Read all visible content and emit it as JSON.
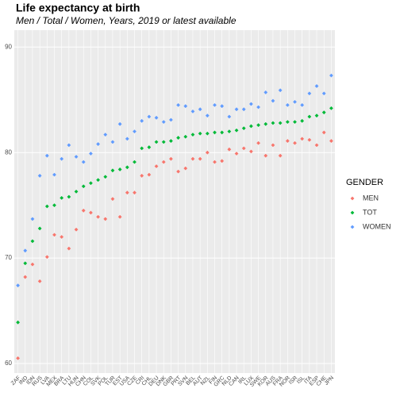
{
  "chart_data": {
    "type": "scatter",
    "title": "Life expectancy at birth",
    "subtitle": "Men / Total / Women, Years, 2019 or latest available",
    "legend_title": "GENDER",
    "categories": [
      "ZAF",
      "IND",
      "IDN",
      "RUS",
      "LVA",
      "MEX",
      "BRA",
      "LTU",
      "HUN",
      "CHN",
      "COL",
      "SVK",
      "POL",
      "TUR",
      "EST",
      "USA",
      "CZE",
      "CRI",
      "CHL",
      "DEU",
      "DNK",
      "GBR",
      "PRT",
      "SVN",
      "BEL",
      "AUT",
      "NZL",
      "FIN",
      "GRC",
      "NLD",
      "CAN",
      "IRL",
      "LUX",
      "SWE",
      "KOR",
      "AUS",
      "FRA",
      "NOR",
      "ISR",
      "ISL",
      "ITA",
      "ESP",
      "CHE",
      "JPN"
    ],
    "series": [
      {
        "name": "MEN",
        "color": "#F8766D",
        "values": [
          60.5,
          68.2,
          69.4,
          67.8,
          70.1,
          72.2,
          72.0,
          70.9,
          72.7,
          74.5,
          74.3,
          73.9,
          73.7,
          75.6,
          73.9,
          76.2,
          76.2,
          77.8,
          77.9,
          78.7,
          79.1,
          79.4,
          78.2,
          78.5,
          79.4,
          79.4,
          80.0,
          79.1,
          79.2,
          80.3,
          79.9,
          80.4,
          80.1,
          80.9,
          79.7,
          80.7,
          79.7,
          81.1,
          80.9,
          81.3,
          81.2,
          80.7,
          81.9,
          81.1
        ]
      },
      {
        "name": "TOT",
        "color": "#00BA38",
        "values": [
          63.9,
          69.5,
          71.6,
          72.8,
          74.9,
          75.0,
          75.7,
          75.8,
          76.3,
          76.8,
          77.1,
          77.4,
          77.7,
          78.3,
          78.4,
          78.6,
          79.1,
          80.4,
          80.5,
          81.0,
          81.0,
          81.1,
          81.4,
          81.5,
          81.7,
          81.8,
          81.8,
          81.9,
          81.9,
          82.0,
          82.1,
          82.3,
          82.5,
          82.6,
          82.7,
          82.8,
          82.8,
          82.9,
          82.9,
          83.0,
          83.4,
          83.5,
          83.8,
          84.2
        ]
      },
      {
        "name": "WOMEN",
        "color": "#619CFF",
        "values": [
          67.4,
          70.7,
          73.7,
          77.8,
          79.7,
          77.9,
          79.4,
          80.7,
          79.6,
          79.1,
          79.9,
          80.8,
          81.7,
          81.0,
          82.7,
          81.3,
          82.0,
          83.0,
          83.4,
          83.3,
          82.9,
          83.1,
          84.5,
          84.4,
          83.9,
          84.1,
          83.5,
          84.5,
          84.4,
          83.4,
          84.1,
          84.1,
          84.6,
          84.3,
          85.7,
          84.9,
          85.9,
          84.5,
          84.8,
          84.5,
          85.6,
          86.3,
          85.6,
          87.3
        ]
      }
    ],
    "ylim": [
      59.1,
      91.6
    ],
    "yticks": [
      60,
      70,
      80,
      90
    ],
    "grid": true
  }
}
